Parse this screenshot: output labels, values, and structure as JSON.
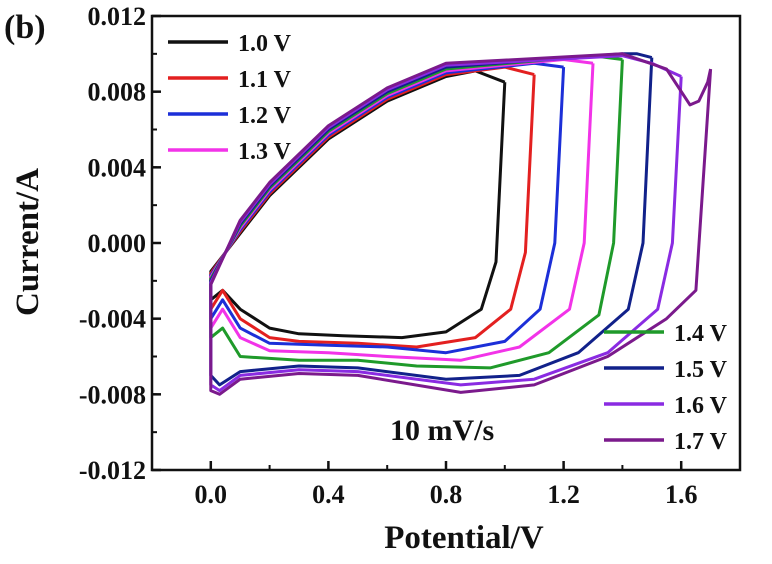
{
  "panel_label": "(b)",
  "chart_data": {
    "type": "line",
    "title": "",
    "xlabel": "Potential/V",
    "ylabel": "Current/A",
    "xlim": [
      -0.2,
      1.8
    ],
    "ylim": [
      -0.012,
      0.012
    ],
    "x_ticks": [
      "0.0",
      "0.4",
      "0.8",
      "1.2",
      "1.6"
    ],
    "x_tick_values": [
      0.0,
      0.4,
      0.8,
      1.2,
      1.6
    ],
    "y_ticks": [
      "0.012",
      "0.008",
      "0.004",
      "0.000",
      "-0.004",
      "-0.008",
      "-0.012"
    ],
    "y_tick_values": [
      0.012,
      0.008,
      0.004,
      0.0,
      -0.004,
      -0.008,
      -0.012
    ],
    "annotation": "10 mV/s",
    "legend_groups": [
      "top-left",
      "bottom-right"
    ],
    "grid": false,
    "series": [
      {
        "name": "1.0 V",
        "color": "#111111",
        "legend_group": 0,
        "x": [
          1.0,
          0.9,
          0.8,
          0.6,
          0.4,
          0.2,
          0.1,
          0.0,
          0.0,
          0.04,
          0.1,
          0.2,
          0.3,
          0.45,
          0.65,
          0.8,
          0.92,
          0.97,
          1.0
        ],
        "y": [
          0.0085,
          0.0091,
          0.0088,
          0.0075,
          0.0055,
          0.0025,
          0.0005,
          -0.0015,
          -0.003,
          -0.0025,
          -0.0035,
          -0.0045,
          -0.0048,
          -0.0049,
          -0.005,
          -0.0047,
          -0.0035,
          -0.001,
          0.0085
        ]
      },
      {
        "name": "1.1 V",
        "color": "#e32020",
        "legend_group": 0,
        "x": [
          1.1,
          1.0,
          0.8,
          0.6,
          0.4,
          0.2,
          0.1,
          0.0,
          0.0,
          0.04,
          0.1,
          0.2,
          0.3,
          0.5,
          0.7,
          0.9,
          1.02,
          1.07,
          1.1
        ],
        "y": [
          0.0089,
          0.0093,
          0.0089,
          0.0076,
          0.0056,
          0.0026,
          0.0006,
          -0.0016,
          -0.0035,
          -0.0025,
          -0.004,
          -0.005,
          -0.0052,
          -0.0053,
          -0.0055,
          -0.005,
          -0.0035,
          -0.0005,
          0.0089
        ]
      },
      {
        "name": "1.2 V",
        "color": "#1c2fd8",
        "legend_group": 0,
        "x": [
          1.2,
          1.1,
          0.8,
          0.6,
          0.4,
          0.2,
          0.1,
          0.0,
          0.0,
          0.04,
          0.1,
          0.2,
          0.4,
          0.6,
          0.8,
          1.0,
          1.12,
          1.17,
          1.2
        ],
        "y": [
          0.0093,
          0.0095,
          0.009,
          0.0077,
          0.0057,
          0.0027,
          0.0007,
          -0.0017,
          -0.004,
          -0.003,
          -0.0045,
          -0.0053,
          -0.0054,
          -0.0055,
          -0.0058,
          -0.0052,
          -0.0035,
          0.0,
          0.0093
        ]
      },
      {
        "name": "1.3 V",
        "color": "#f233e8",
        "legend_group": 0,
        "x": [
          1.3,
          1.2,
          0.8,
          0.6,
          0.4,
          0.2,
          0.1,
          0.0,
          0.0,
          0.04,
          0.1,
          0.2,
          0.4,
          0.6,
          0.85,
          1.05,
          1.22,
          1.27,
          1.3
        ],
        "y": [
          0.0095,
          0.0097,
          0.0091,
          0.0078,
          0.0058,
          0.0028,
          0.0008,
          -0.0018,
          -0.0045,
          -0.0035,
          -0.005,
          -0.0057,
          -0.0058,
          -0.006,
          -0.0062,
          -0.0055,
          -0.0035,
          0.0,
          0.0095
        ]
      },
      {
        "name": "1.4 V",
        "color": "#1f9a2a",
        "legend_group": 1,
        "x": [
          1.4,
          1.3,
          0.8,
          0.6,
          0.4,
          0.2,
          0.1,
          0.0,
          0.0,
          0.04,
          0.1,
          0.3,
          0.5,
          0.7,
          0.95,
          1.15,
          1.32,
          1.37,
          1.4
        ],
        "y": [
          0.0097,
          0.0099,
          0.0092,
          0.0079,
          0.0059,
          0.0029,
          0.0009,
          -0.0019,
          -0.005,
          -0.0045,
          -0.006,
          -0.0062,
          -0.0062,
          -0.0065,
          -0.0066,
          -0.0058,
          -0.0038,
          0.0,
          0.0097
        ]
      },
      {
        "name": "1.5 V",
        "color": "#11218a",
        "legend_group": 1,
        "x": [
          1.5,
          1.45,
          1.4,
          0.8,
          0.6,
          0.4,
          0.2,
          0.1,
          0.0,
          0.0,
          0.03,
          0.1,
          0.3,
          0.5,
          0.8,
          1.05,
          1.25,
          1.42,
          1.47,
          1.5
        ],
        "y": [
          0.0098,
          0.01,
          0.01,
          0.0093,
          0.008,
          0.006,
          0.003,
          0.001,
          -0.002,
          -0.007,
          -0.0075,
          -0.0068,
          -0.0065,
          -0.0066,
          -0.0072,
          -0.007,
          -0.0058,
          -0.0035,
          0.0,
          0.0098
        ]
      },
      {
        "name": "1.6 V",
        "color": "#8a2be2",
        "legend_group": 1,
        "x": [
          1.6,
          1.5,
          1.4,
          0.8,
          0.6,
          0.4,
          0.2,
          0.1,
          0.0,
          0.0,
          0.03,
          0.1,
          0.3,
          0.5,
          0.85,
          1.1,
          1.35,
          1.52,
          1.57,
          1.6
        ],
        "y": [
          0.0088,
          0.0095,
          0.0099,
          0.0094,
          0.0081,
          0.0061,
          0.0031,
          0.0011,
          -0.0021,
          -0.0075,
          -0.0078,
          -0.007,
          -0.0067,
          -0.0068,
          -0.0075,
          -0.0072,
          -0.0058,
          -0.0035,
          0.0,
          0.0088
        ]
      },
      {
        "name": "1.7 V",
        "color": "#7b1a8c",
        "legend_group": 1,
        "x": [
          1.7,
          1.69,
          1.66,
          1.63,
          1.55,
          1.4,
          0.8,
          0.6,
          0.4,
          0.2,
          0.1,
          0.0,
          0.0,
          0.03,
          0.1,
          0.3,
          0.5,
          0.85,
          1.1,
          1.35,
          1.55,
          1.65,
          1.7
        ],
        "y": [
          0.0092,
          0.0085,
          0.0075,
          0.0073,
          0.0092,
          0.01,
          0.0095,
          0.0082,
          0.0062,
          0.0032,
          0.0012,
          -0.0022,
          -0.0078,
          -0.008,
          -0.0072,
          -0.0069,
          -0.007,
          -0.0079,
          -0.0075,
          -0.006,
          -0.004,
          -0.0025,
          0.0092
        ]
      }
    ]
  }
}
